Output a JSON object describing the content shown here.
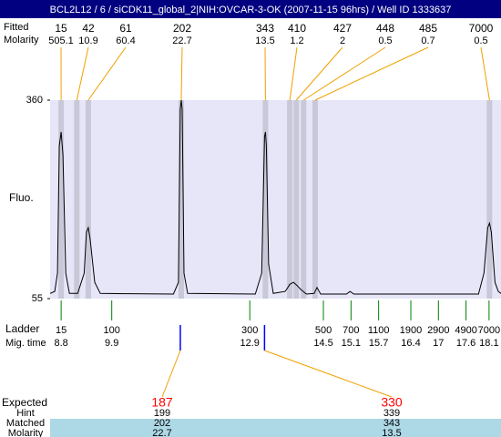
{
  "header": {
    "title": "BCL2L12 / 6 / siCDK11_global_2|NIH:OVCAR-3-OK (2007-11-15 96hrs) / Well ID 1333637"
  },
  "chart_data": {
    "type": "line",
    "y_label": "Fluo.",
    "ylim": [
      55,
      360
    ],
    "yticks": [
      55,
      360
    ],
    "xlim": [
      8.56,
      18.36
    ],
    "color": "#000000",
    "band_color": "#c8c8d8",
    "x": [
      8.56,
      8.66,
      8.72,
      8.76,
      8.8,
      8.84,
      8.9,
      8.98,
      9.16,
      9.3,
      9.35,
      9.39,
      9.43,
      9.53,
      9.65,
      11.24,
      11.35,
      11.39,
      11.41,
      11.43,
      11.47,
      11.55,
      13.02,
      13.16,
      13.22,
      13.24,
      13.26,
      13.31,
      13.41,
      13.67,
      13.77,
      13.85,
      13.93,
      14.01,
      14.13,
      14.3,
      14.36,
      14.44,
      15.0,
      15.08,
      15.16,
      17.87,
      17.99,
      18.07,
      18.11,
      18.15,
      18.23,
      18.3,
      18.36
    ],
    "values": [
      63,
      66,
      94,
      290,
      311,
      276,
      94,
      63,
      63,
      94,
      157,
      164,
      147,
      80,
      63,
      62,
      80,
      346,
      360,
      346,
      94,
      63,
      62,
      94,
      304,
      311,
      290,
      108,
      63,
      66,
      77,
      80,
      75,
      69,
      62,
      63,
      72,
      62,
      62,
      66,
      62,
      62,
      94,
      164,
      171,
      157,
      80,
      66,
      63
    ],
    "peaks": {
      "label": "Fitted",
      "molarity_label": "Molarity",
      "sizes": [
        15,
        42,
        61,
        202,
        343,
        410,
        427,
        448,
        485,
        7000
      ],
      "molarity": [
        505.1,
        10.9,
        60.4,
        22.7,
        13.5,
        1.2,
        2,
        0.5,
        0.7,
        0.5
      ],
      "time": [
        8.8,
        9.14,
        9.39,
        11.41,
        13.24,
        13.77,
        13.91,
        14.07,
        14.32,
        18.11
      ]
    },
    "ladder": {
      "label": "Ladder",
      "time_label": "Mig. time",
      "sizes": [
        15,
        100,
        300,
        500,
        700,
        1100,
        1900,
        2900,
        4900,
        7000
      ],
      "times": [
        8.8,
        9.9,
        12.9,
        14.5,
        15.1,
        15.7,
        16.4,
        17,
        17.6,
        18.1
      ]
    },
    "expected": {
      "label": "Expected",
      "hint_label": "Hint",
      "matched_label": "Matched",
      "molarity_label": "Molarity",
      "values": [
        187,
        330
      ],
      "hint": [
        199,
        339
      ],
      "matched": [
        202,
        343
      ],
      "molarity": [
        22.7,
        13.5
      ],
      "time": [
        11.39,
        13.22
      ]
    }
  }
}
